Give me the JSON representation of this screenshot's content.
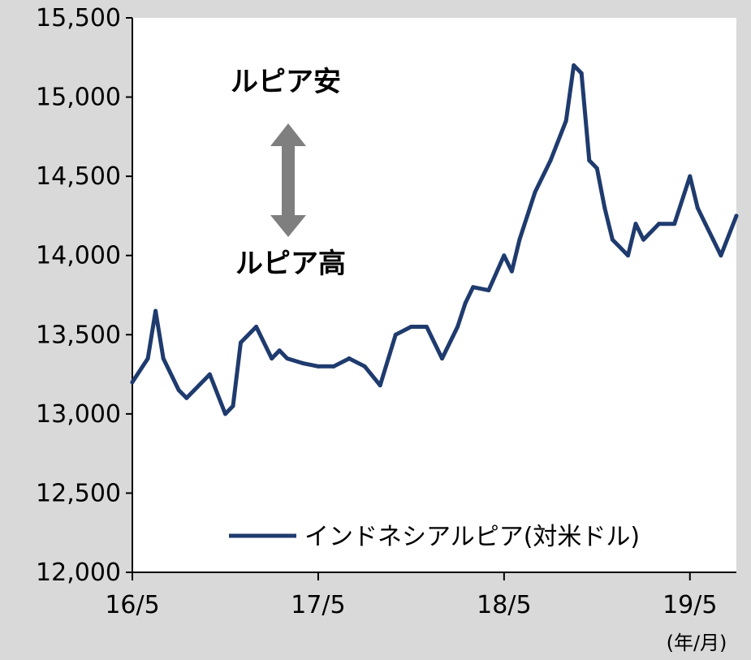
{
  "chart_data": {
    "type": "line",
    "x_tick_labels": [
      "16/5",
      "17/5",
      "18/5",
      "19/5"
    ],
    "x_unit_label": "(年/月)",
    "y_tick_labels": [
      "12,000",
      "12,500",
      "13,000",
      "13,500",
      "14,000",
      "14,500",
      "15,000",
      "15,500"
    ],
    "ylim": [
      12000,
      15500
    ],
    "y_ticks": [
      12000,
      12500,
      13000,
      13500,
      14000,
      14500,
      15000,
      15500
    ],
    "x_ticks": [
      "2016-05",
      "2017-05",
      "2018-05",
      "2019-05"
    ],
    "xlim": [
      "2016-05",
      "2019-08"
    ],
    "grid": false,
    "legend_position": "bottom-right",
    "annotations": {
      "upper": "ルピア安",
      "lower": "ルピア高"
    },
    "colors": {
      "line": "#1f3b6e",
      "arrow": "#7f7f7f",
      "plot_bg": "#ffffff",
      "page_bg": "#d9d9d9"
    },
    "series": [
      {
        "name": "インドネシアルピア(対米ドル)",
        "x": [
          "2016-05",
          "2016-06",
          "2016-06",
          "2016-07",
          "2016-08",
          "2016-08",
          "2016-09",
          "2016-10",
          "2016-11",
          "2016-11",
          "2016-12",
          "2017-01",
          "2017-02",
          "2017-02",
          "2017-03",
          "2017-04",
          "2017-05",
          "2017-06",
          "2017-07",
          "2017-08",
          "2017-09",
          "2017-10",
          "2017-11",
          "2017-11",
          "2017-12",
          "2018-01",
          "2018-02",
          "2018-02",
          "2018-03",
          "2018-04",
          "2018-05",
          "2018-05",
          "2018-06",
          "2018-07",
          "2018-08",
          "2018-09",
          "2018-09",
          "2018-10",
          "2018-10",
          "2018-11",
          "2018-11",
          "2018-12",
          "2019-01",
          "2019-01",
          "2019-02",
          "2019-03",
          "2019-04",
          "2019-05",
          "2019-05",
          "2019-06",
          "2019-06",
          "2019-07",
          "2019-08"
        ],
        "values": [
          13200,
          13350,
          13650,
          13350,
          13150,
          13100,
          13150,
          13250,
          13000,
          13050,
          13450,
          13550,
          13350,
          13400,
          13350,
          13320,
          13300,
          13300,
          13350,
          13300,
          13180,
          13500,
          13550,
          13550,
          13550,
          13350,
          13550,
          13700,
          13800,
          13780,
          14000,
          13900,
          14100,
          14400,
          14600,
          14850,
          15200,
          15150,
          14600,
          14550,
          14300,
          14100,
          14000,
          14200,
          14100,
          14200,
          14200,
          14500,
          14300,
          14200,
          14100,
          14000,
          14250
        ]
      }
    ]
  }
}
